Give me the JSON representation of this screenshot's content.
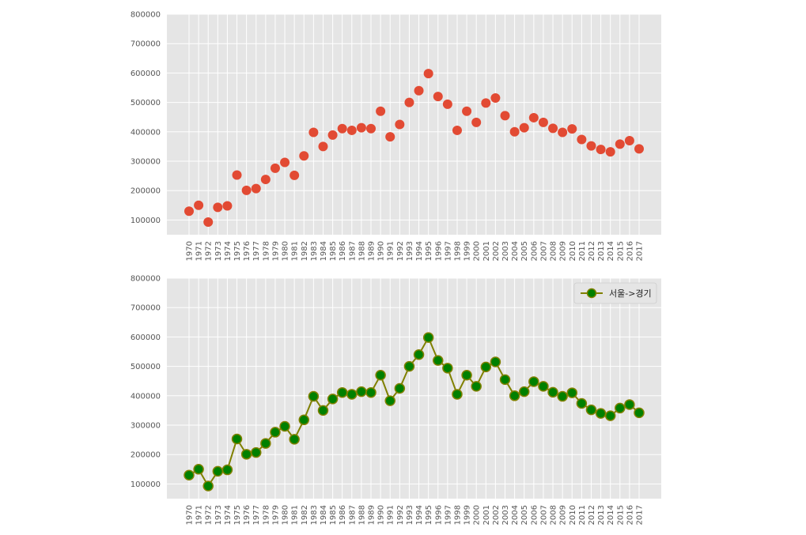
{
  "chart_data": [
    {
      "type": "scatter",
      "x": [
        "1970",
        "1971",
        "1972",
        "1973",
        "1974",
        "1975",
        "1976",
        "1977",
        "1978",
        "1979",
        "1980",
        "1981",
        "1982",
        "1983",
        "1984",
        "1985",
        "1986",
        "1987",
        "1988",
        "1989",
        "1990",
        "1991",
        "1992",
        "1993",
        "1994",
        "1995",
        "1996",
        "1997",
        "1998",
        "1999",
        "2000",
        "2001",
        "2002",
        "2003",
        "2004",
        "2005",
        "2006",
        "2007",
        "2008",
        "2009",
        "2010",
        "2011",
        "2012",
        "2013",
        "2014",
        "2015",
        "2016",
        "2017"
      ],
      "series": [
        {
          "values": [
            130000,
            150000,
            93000,
            143000,
            148000,
            253000,
            201000,
            207000,
            238000,
            276000,
            296000,
            252000,
            318000,
            398000,
            350000,
            389000,
            411000,
            405000,
            414000,
            411000,
            470000,
            383000,
            425000,
            500000,
            540000,
            598000,
            520000,
            494000,
            405000,
            470000,
            432000,
            498000,
            515000,
            455000,
            400000,
            414000,
            448000,
            432000,
            412000,
            398000,
            410000,
            374000,
            352000,
            340000,
            332000,
            358000,
            370000,
            342000
          ],
          "color": "#e24a33"
        }
      ],
      "ylim": [
        50000,
        800000
      ],
      "yticks": [
        100000,
        200000,
        300000,
        400000,
        500000,
        600000,
        700000,
        800000
      ],
      "grid": true,
      "background": "#e5e5e5"
    },
    {
      "type": "line",
      "x": [
        "1970",
        "1971",
        "1972",
        "1973",
        "1974",
        "1975",
        "1976",
        "1977",
        "1978",
        "1979",
        "1980",
        "1981",
        "1982",
        "1983",
        "1984",
        "1985",
        "1986",
        "1987",
        "1988",
        "1989",
        "1990",
        "1991",
        "1992",
        "1993",
        "1994",
        "1995",
        "1996",
        "1997",
        "1998",
        "1999",
        "2000",
        "2001",
        "2002",
        "2003",
        "2004",
        "2005",
        "2006",
        "2007",
        "2008",
        "2009",
        "2010",
        "2011",
        "2012",
        "2013",
        "2014",
        "2015",
        "2016",
        "2017"
      ],
      "series": [
        {
          "name": "서울->경기",
          "values": [
            130000,
            150000,
            93000,
            143000,
            148000,
            253000,
            201000,
            207000,
            238000,
            276000,
            296000,
            252000,
            318000,
            398000,
            350000,
            389000,
            411000,
            405000,
            414000,
            411000,
            470000,
            383000,
            425000,
            500000,
            540000,
            598000,
            520000,
            494000,
            405000,
            470000,
            432000,
            498000,
            515000,
            455000,
            400000,
            414000,
            448000,
            432000,
            412000,
            398000,
            410000,
            374000,
            352000,
            340000,
            332000,
            358000,
            370000,
            342000
          ],
          "line_color": "#808000",
          "marker_color": "#008000"
        }
      ],
      "ylim": [
        50000,
        800000
      ],
      "yticks": [
        100000,
        200000,
        300000,
        400000,
        500000,
        600000,
        700000,
        800000
      ],
      "grid": true,
      "legend": "top-right",
      "background": "#e5e5e5"
    }
  ]
}
